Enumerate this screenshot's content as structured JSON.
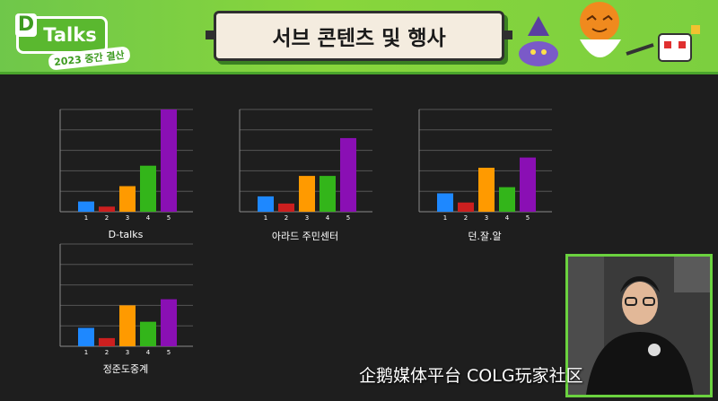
{
  "header": {
    "logo_letter": "D",
    "logo_name": "Talks",
    "logo_sub": "2023 중간 결산",
    "title": "서브 콘텐츠 및 행사"
  },
  "colors": {
    "bar1": "#1e88ff",
    "bar2": "#cc1f1f",
    "bar3": "#ff9a00",
    "bar4": "#33b51a",
    "bar5": "#8a0fb4"
  },
  "chart_data": [
    {
      "type": "bar",
      "label": "D-talks",
      "categories": [
        "1",
        "2",
        "3",
        "4",
        "5"
      ],
      "values": [
        1,
        0.5,
        2.5,
        4.5,
        10
      ]
    },
    {
      "type": "bar",
      "label": "아라드 주민센터",
      "categories": [
        "1",
        "2",
        "3",
        "4",
        "5"
      ],
      "values": [
        1.5,
        0.8,
        3.5,
        3.5,
        7.2
      ]
    },
    {
      "type": "bar",
      "label": "던.잘.알",
      "categories": [
        "1",
        "2",
        "3",
        "4",
        "5"
      ],
      "values": [
        1.8,
        0.9,
        4.3,
        2.4,
        5.3
      ]
    },
    {
      "type": "bar",
      "label": "정준도중계",
      "categories": [
        "1",
        "2",
        "3",
        "4",
        "5"
      ],
      "values": [
        1.8,
        0.8,
        4.0,
        2.4,
        4.6
      ]
    }
  ],
  "watermark": "企鹅媒体平台 COLG玩家社区"
}
